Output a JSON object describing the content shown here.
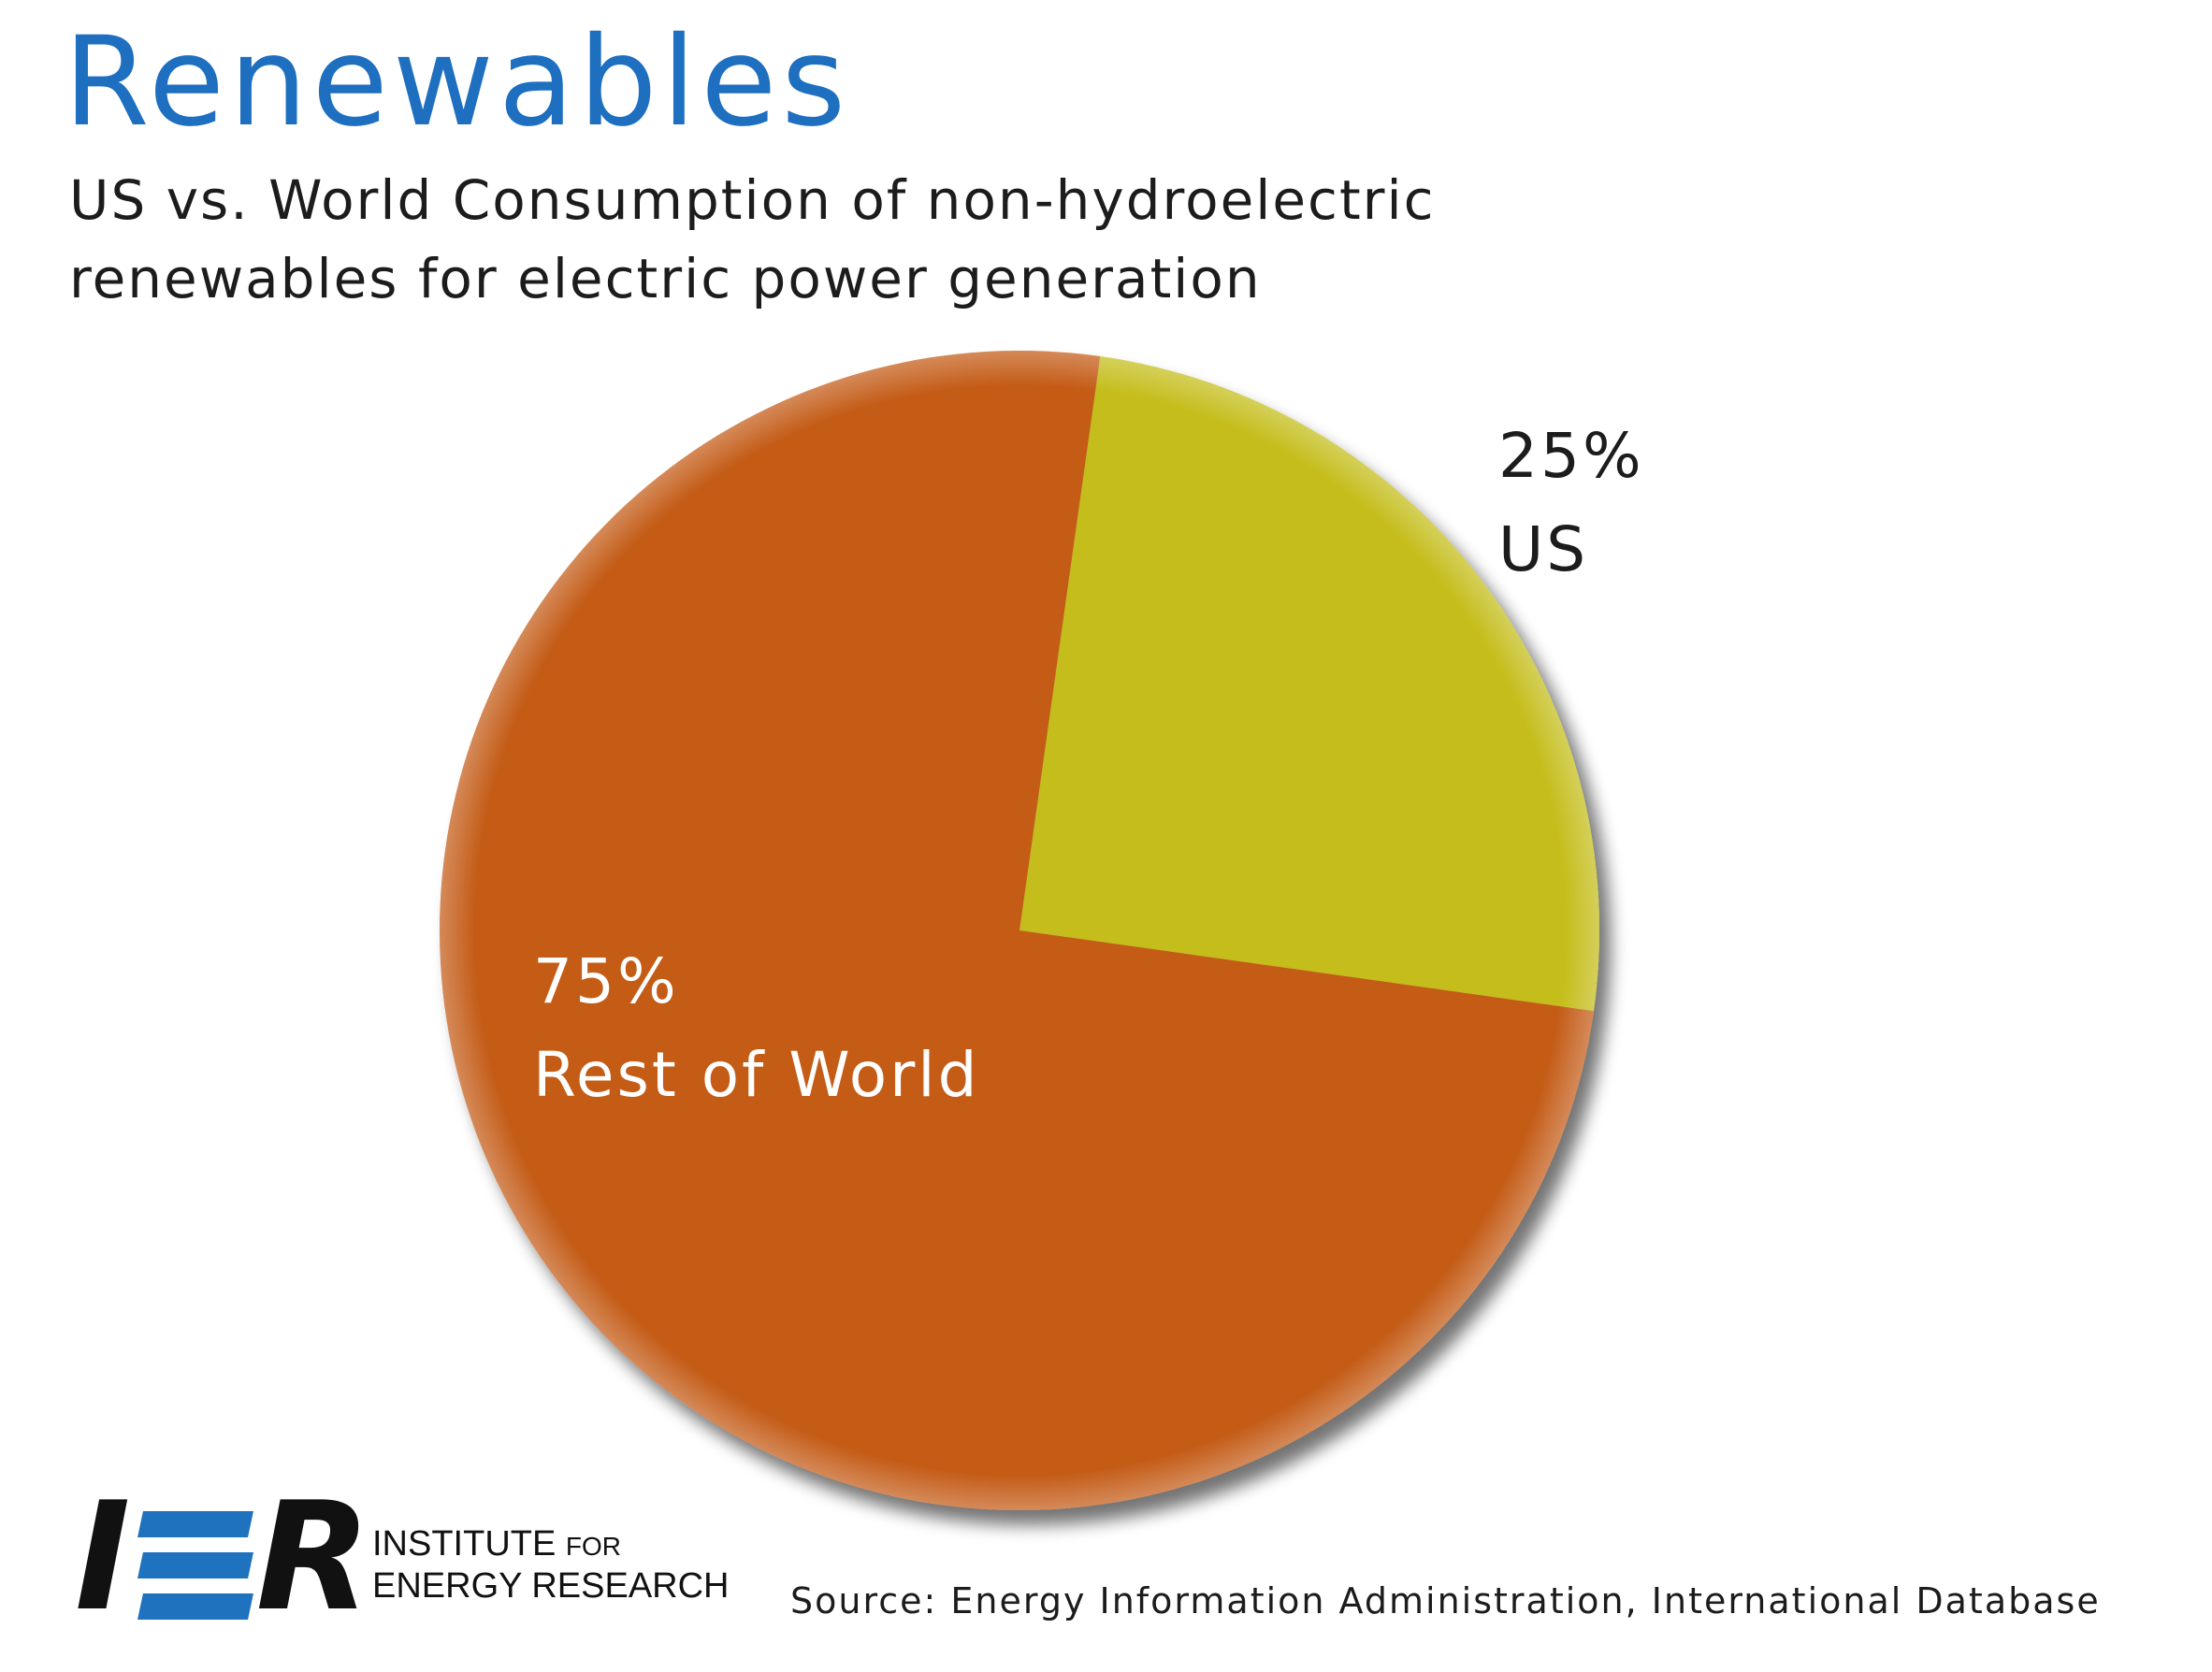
{
  "title": "Renewables",
  "subtitle_line1": "US vs. World Consumption of non-hydroelectric",
  "subtitle_line2": "renewables for electric power generation",
  "source": "Source: Energy Information Administration, International Database",
  "logo": {
    "mark_i": "I",
    "mark_r": "R",
    "name_line1_a": "INSTITUTE",
    "name_line1_b": "FOR",
    "name_line2": "ENERGY RESEARCH"
  },
  "colors": {
    "title": "#1e6fc0",
    "us": "#c4bd1a",
    "rest_of_world": "#c45c18",
    "label_dark": "#1c1c1c",
    "label_light": "#ffffff",
    "logo_black": "#111111",
    "logo_blue": "#1e72be"
  },
  "chart_data": {
    "type": "pie",
    "title": "Renewables",
    "subtitle": "US vs. World Consumption of non-hydroelectric renewables for electric power generation",
    "slices": [
      {
        "label": "US",
        "value": 25,
        "percent_label": "25%"
      },
      {
        "label": "Rest of  World",
        "value": 75,
        "percent_label": "75%"
      }
    ],
    "legend": "none"
  }
}
